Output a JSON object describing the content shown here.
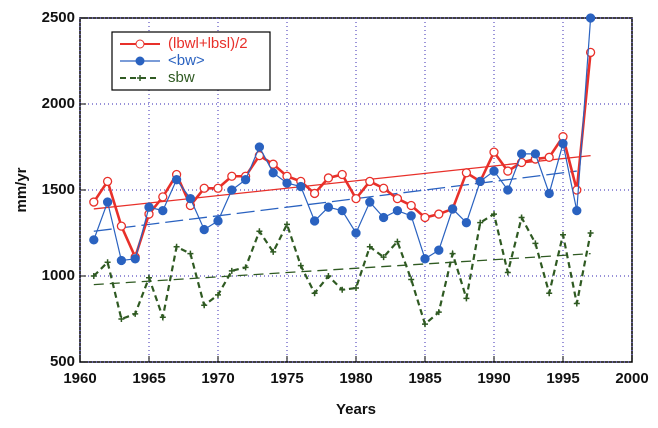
{
  "chart_data": {
    "type": "line",
    "xlabel": "Years",
    "ylabel": "mm/yr",
    "x": [
      1961,
      1962,
      1963,
      1964,
      1965,
      1966,
      1967,
      1968,
      1969,
      1970,
      1971,
      1972,
      1973,
      1974,
      1975,
      1976,
      1977,
      1978,
      1979,
      1980,
      1981,
      1982,
      1983,
      1984,
      1985,
      1986,
      1987,
      1988,
      1989,
      1990,
      1991,
      1992,
      1993,
      1994,
      1995,
      1996,
      1997
    ],
    "series": [
      {
        "name": "(lbwl+lbsl)/2",
        "color": "#e8302a",
        "marker": "open-circle",
        "dash": "none",
        "values": [
          1430,
          1550,
          1290,
          1110,
          1360,
          1460,
          1590,
          1410,
          1510,
          1510,
          1580,
          1580,
          1700,
          1650,
          1580,
          1550,
          1480,
          1570,
          1590,
          1450,
          1550,
          1510,
          1450,
          1410,
          1340,
          1360,
          1390,
          1600,
          1550,
          1720,
          1610,
          1660,
          1680,
          1690,
          1810,
          1500,
          2300
        ]
      },
      {
        "name": "<bw>",
        "color": "#2a62c0",
        "marker": "circle",
        "dash": "none",
        "values": [
          1210,
          1430,
          1090,
          1100,
          1400,
          1380,
          1560,
          1450,
          1270,
          1320,
          1500,
          1560,
          1750,
          1600,
          1540,
          1520,
          1320,
          1400,
          1380,
          1250,
          1430,
          1340,
          1380,
          1350,
          1100,
          1150,
          1390,
          1310,
          1550,
          1610,
          1500,
          1710,
          1710,
          1480,
          1770,
          1380,
          2500
        ]
      },
      {
        "name": "sbw",
        "color": "#2f5a22",
        "marker": "plus",
        "dash": "6,4",
        "values": [
          1000,
          1080,
          750,
          780,
          990,
          760,
          1170,
          1130,
          830,
          890,
          1030,
          1050,
          1260,
          1140,
          1300,
          1060,
          900,
          1000,
          920,
          930,
          1170,
          1110,
          1200,
          980,
          720,
          790,
          1130,
          870,
          1310,
          1360,
          1020,
          1340,
          1190,
          900,
          1240,
          840,
          1250
        ]
      }
    ],
    "trend_lines": [
      {
        "color": "#e8302a",
        "dash": "none",
        "x": [
          1961,
          1997
        ],
        "values": [
          1390,
          1700
        ]
      },
      {
        "color": "#2a62c0",
        "dash": "18,6",
        "x": [
          1961,
          1996
        ],
        "values": [
          1260,
          1610
        ]
      },
      {
        "color": "#2f5a22",
        "dash": "10,6",
        "x": [
          1961,
          1997
        ],
        "values": [
          950,
          1130
        ]
      }
    ],
    "xlim": [
      1960,
      2000
    ],
    "xticks": [
      1960,
      1965,
      1970,
      1975,
      1980,
      1985,
      1990,
      1995,
      2000
    ],
    "ylim": [
      500,
      2500
    ],
    "yticks": [
      500,
      1000,
      1500,
      2000,
      2500
    ],
    "grid": true,
    "legend": "upper-left"
  }
}
